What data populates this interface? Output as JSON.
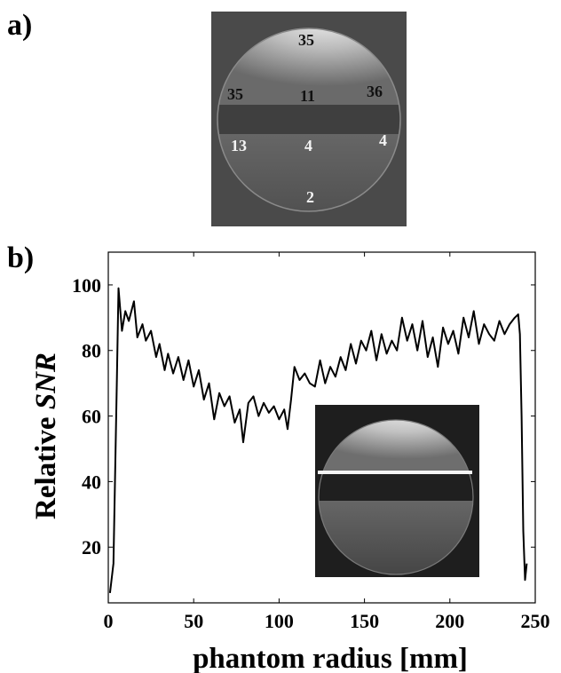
{
  "panel_labels": {
    "a": "a)",
    "b": "b)"
  },
  "phantom_snr_values": {
    "top": "35",
    "upper_left": "35",
    "upper_center": "11",
    "upper_right": "36",
    "lower_left": "13",
    "lower_center": "4",
    "lower_right": "4",
    "bottom": "2"
  },
  "colors": {
    "line": "#000000",
    "image_background": "#4a4a4a",
    "inset_background": "#1e1e1e",
    "inset_marker_line": "#f4f4f4"
  },
  "chart_data": {
    "type": "line",
    "xlabel": "phantom radius [mm]",
    "ylabel_prefix": "Relative ",
    "ylabel_italic": "SNR",
    "xlim": [
      0,
      250
    ],
    "ylim": [
      3,
      110
    ],
    "xticks": [
      0,
      50,
      100,
      150,
      200,
      250
    ],
    "yticks": [
      20,
      40,
      60,
      80,
      100
    ],
    "grid": false,
    "x": [
      1,
      3,
      5,
      6,
      8,
      10,
      12,
      15,
      17,
      20,
      22,
      25,
      28,
      30,
      33,
      35,
      38,
      41,
      44,
      47,
      50,
      53,
      56,
      59,
      62,
      65,
      68,
      71,
      74,
      77,
      79,
      82,
      85,
      88,
      91,
      94,
      97,
      100,
      103,
      105,
      107,
      109,
      112,
      115,
      118,
      121,
      124,
      127,
      130,
      133,
      136,
      139,
      142,
      145,
      148,
      151,
      154,
      157,
      160,
      163,
      166,
      169,
      172,
      175,
      178,
      181,
      184,
      187,
      190,
      193,
      196,
      199,
      202,
      205,
      208,
      211,
      214,
      217,
      220,
      223,
      226,
      229,
      232,
      235,
      238,
      240,
      241,
      242,
      243,
      244,
      245
    ],
    "y": [
      6,
      15,
      70,
      99,
      86,
      92,
      89,
      95,
      84,
      88,
      83,
      86,
      78,
      82,
      74,
      79,
      73,
      78,
      71,
      77,
      69,
      74,
      65,
      70,
      59,
      67,
      63,
      66,
      58,
      62,
      52,
      64,
      66,
      60,
      64,
      61,
      63,
      59,
      62,
      56,
      65,
      75,
      71,
      73,
      70,
      69,
      77,
      70,
      75,
      72,
      78,
      74,
      82,
      76,
      83,
      80,
      86,
      77,
      85,
      79,
      83,
      80,
      90,
      83,
      88,
      80,
      89,
      78,
      84,
      75,
      87,
      82,
      86,
      79,
      90,
      84,
      92,
      82,
      88,
      85,
      83,
      89,
      85,
      88,
      90,
      91,
      85,
      60,
      25,
      10,
      15
    ]
  }
}
